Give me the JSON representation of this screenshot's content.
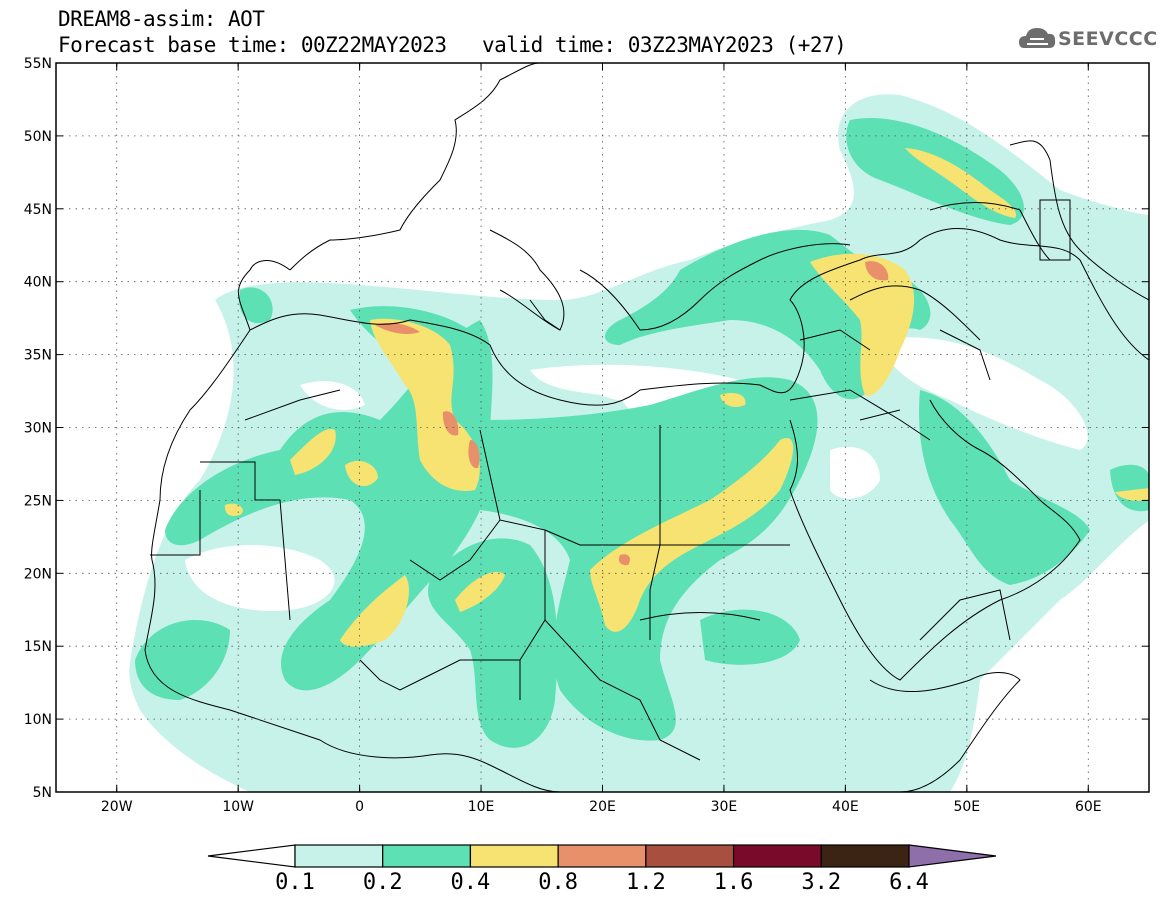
{
  "header": {
    "line1": "DREAM8-assim: AOT",
    "line2": "Forecast base time: 00Z22MAY2023",
    "valid": "valid time: 03Z23MAY2023 (+27)",
    "logo_text": "SEEVCCC"
  },
  "axes": {
    "lon_range": [
      -25,
      65
    ],
    "lat_range": [
      5,
      55
    ],
    "lon_ticks": [
      {
        "value": -20,
        "label": "20W"
      },
      {
        "value": -10,
        "label": "10W"
      },
      {
        "value": 0,
        "label": "0"
      },
      {
        "value": 10,
        "label": "10E"
      },
      {
        "value": 20,
        "label": "20E"
      },
      {
        "value": 30,
        "label": "30E"
      },
      {
        "value": 40,
        "label": "40E"
      },
      {
        "value": 50,
        "label": "50E"
      },
      {
        "value": 60,
        "label": "60E"
      }
    ],
    "lat_ticks": [
      {
        "value": 55,
        "label": "55N"
      },
      {
        "value": 50,
        "label": "50N"
      },
      {
        "value": 45,
        "label": "45N"
      },
      {
        "value": 40,
        "label": "40N"
      },
      {
        "value": 35,
        "label": "35N"
      },
      {
        "value": 30,
        "label": "30N"
      },
      {
        "value": 25,
        "label": "25N"
      },
      {
        "value": 20,
        "label": "20N"
      },
      {
        "value": 15,
        "label": "15N"
      },
      {
        "value": 10,
        "label": "10N"
      },
      {
        "value": 5,
        "label": "5N"
      }
    ],
    "grid": "dotted"
  },
  "colorbar": {
    "levels": [
      "0.1",
      "0.2",
      "0.4",
      "0.8",
      "1.2",
      "1.6",
      "3.2",
      "6.4"
    ],
    "colors": [
      "#ffffff",
      "#c7f2ea",
      "#5ee0b5",
      "#f7e372",
      "#e8906a",
      "#a94f40",
      "#7a0a2a",
      "#3b2414",
      "#8f6faa"
    ]
  },
  "colors": {
    "level1": "#c7f2ea",
    "level2": "#5ee0b5",
    "level3": "#f7e372",
    "level4": "#e8906a",
    "coast": "#000000",
    "logo": "#6d6d6d"
  }
}
